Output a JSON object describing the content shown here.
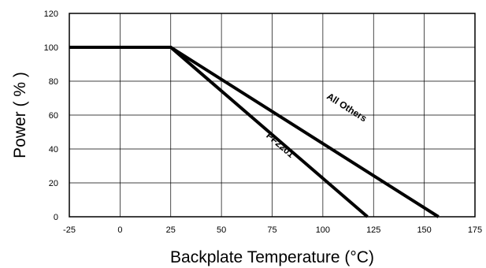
{
  "chart_data": {
    "type": "line",
    "title": "",
    "xlabel": "Backplate Temperature (°C)",
    "ylabel": "Power ( % )",
    "xlim": [
      -25,
      175
    ],
    "ylim": [
      0,
      120
    ],
    "xticks": [
      -25,
      0,
      25,
      50,
      75,
      100,
      125,
      150,
      175
    ],
    "yticks": [
      0,
      20,
      40,
      60,
      80,
      100,
      120
    ],
    "x_tick_labels": [
      "-25",
      "0",
      "25",
      "50",
      "75",
      "100",
      "125",
      "150",
      "175"
    ],
    "y_tick_labels": [
      "0",
      "20",
      "40",
      "60",
      "80",
      "100",
      "120"
    ],
    "grid": true,
    "legend": "none",
    "series": [
      {
        "name": "All Others",
        "x": [
          -25,
          25,
          157
        ],
        "y": [
          100,
          100,
          0
        ],
        "color": "#000000"
      },
      {
        "name": "PF2201",
        "x": [
          -25,
          25,
          122
        ],
        "y": [
          100,
          100,
          0
        ],
        "color": "#000000"
      }
    ],
    "annotations": [
      {
        "text": "All Others",
        "x": 111,
        "y": 63
      },
      {
        "text": "PF2201",
        "x": 78,
        "y": 41
      }
    ]
  }
}
